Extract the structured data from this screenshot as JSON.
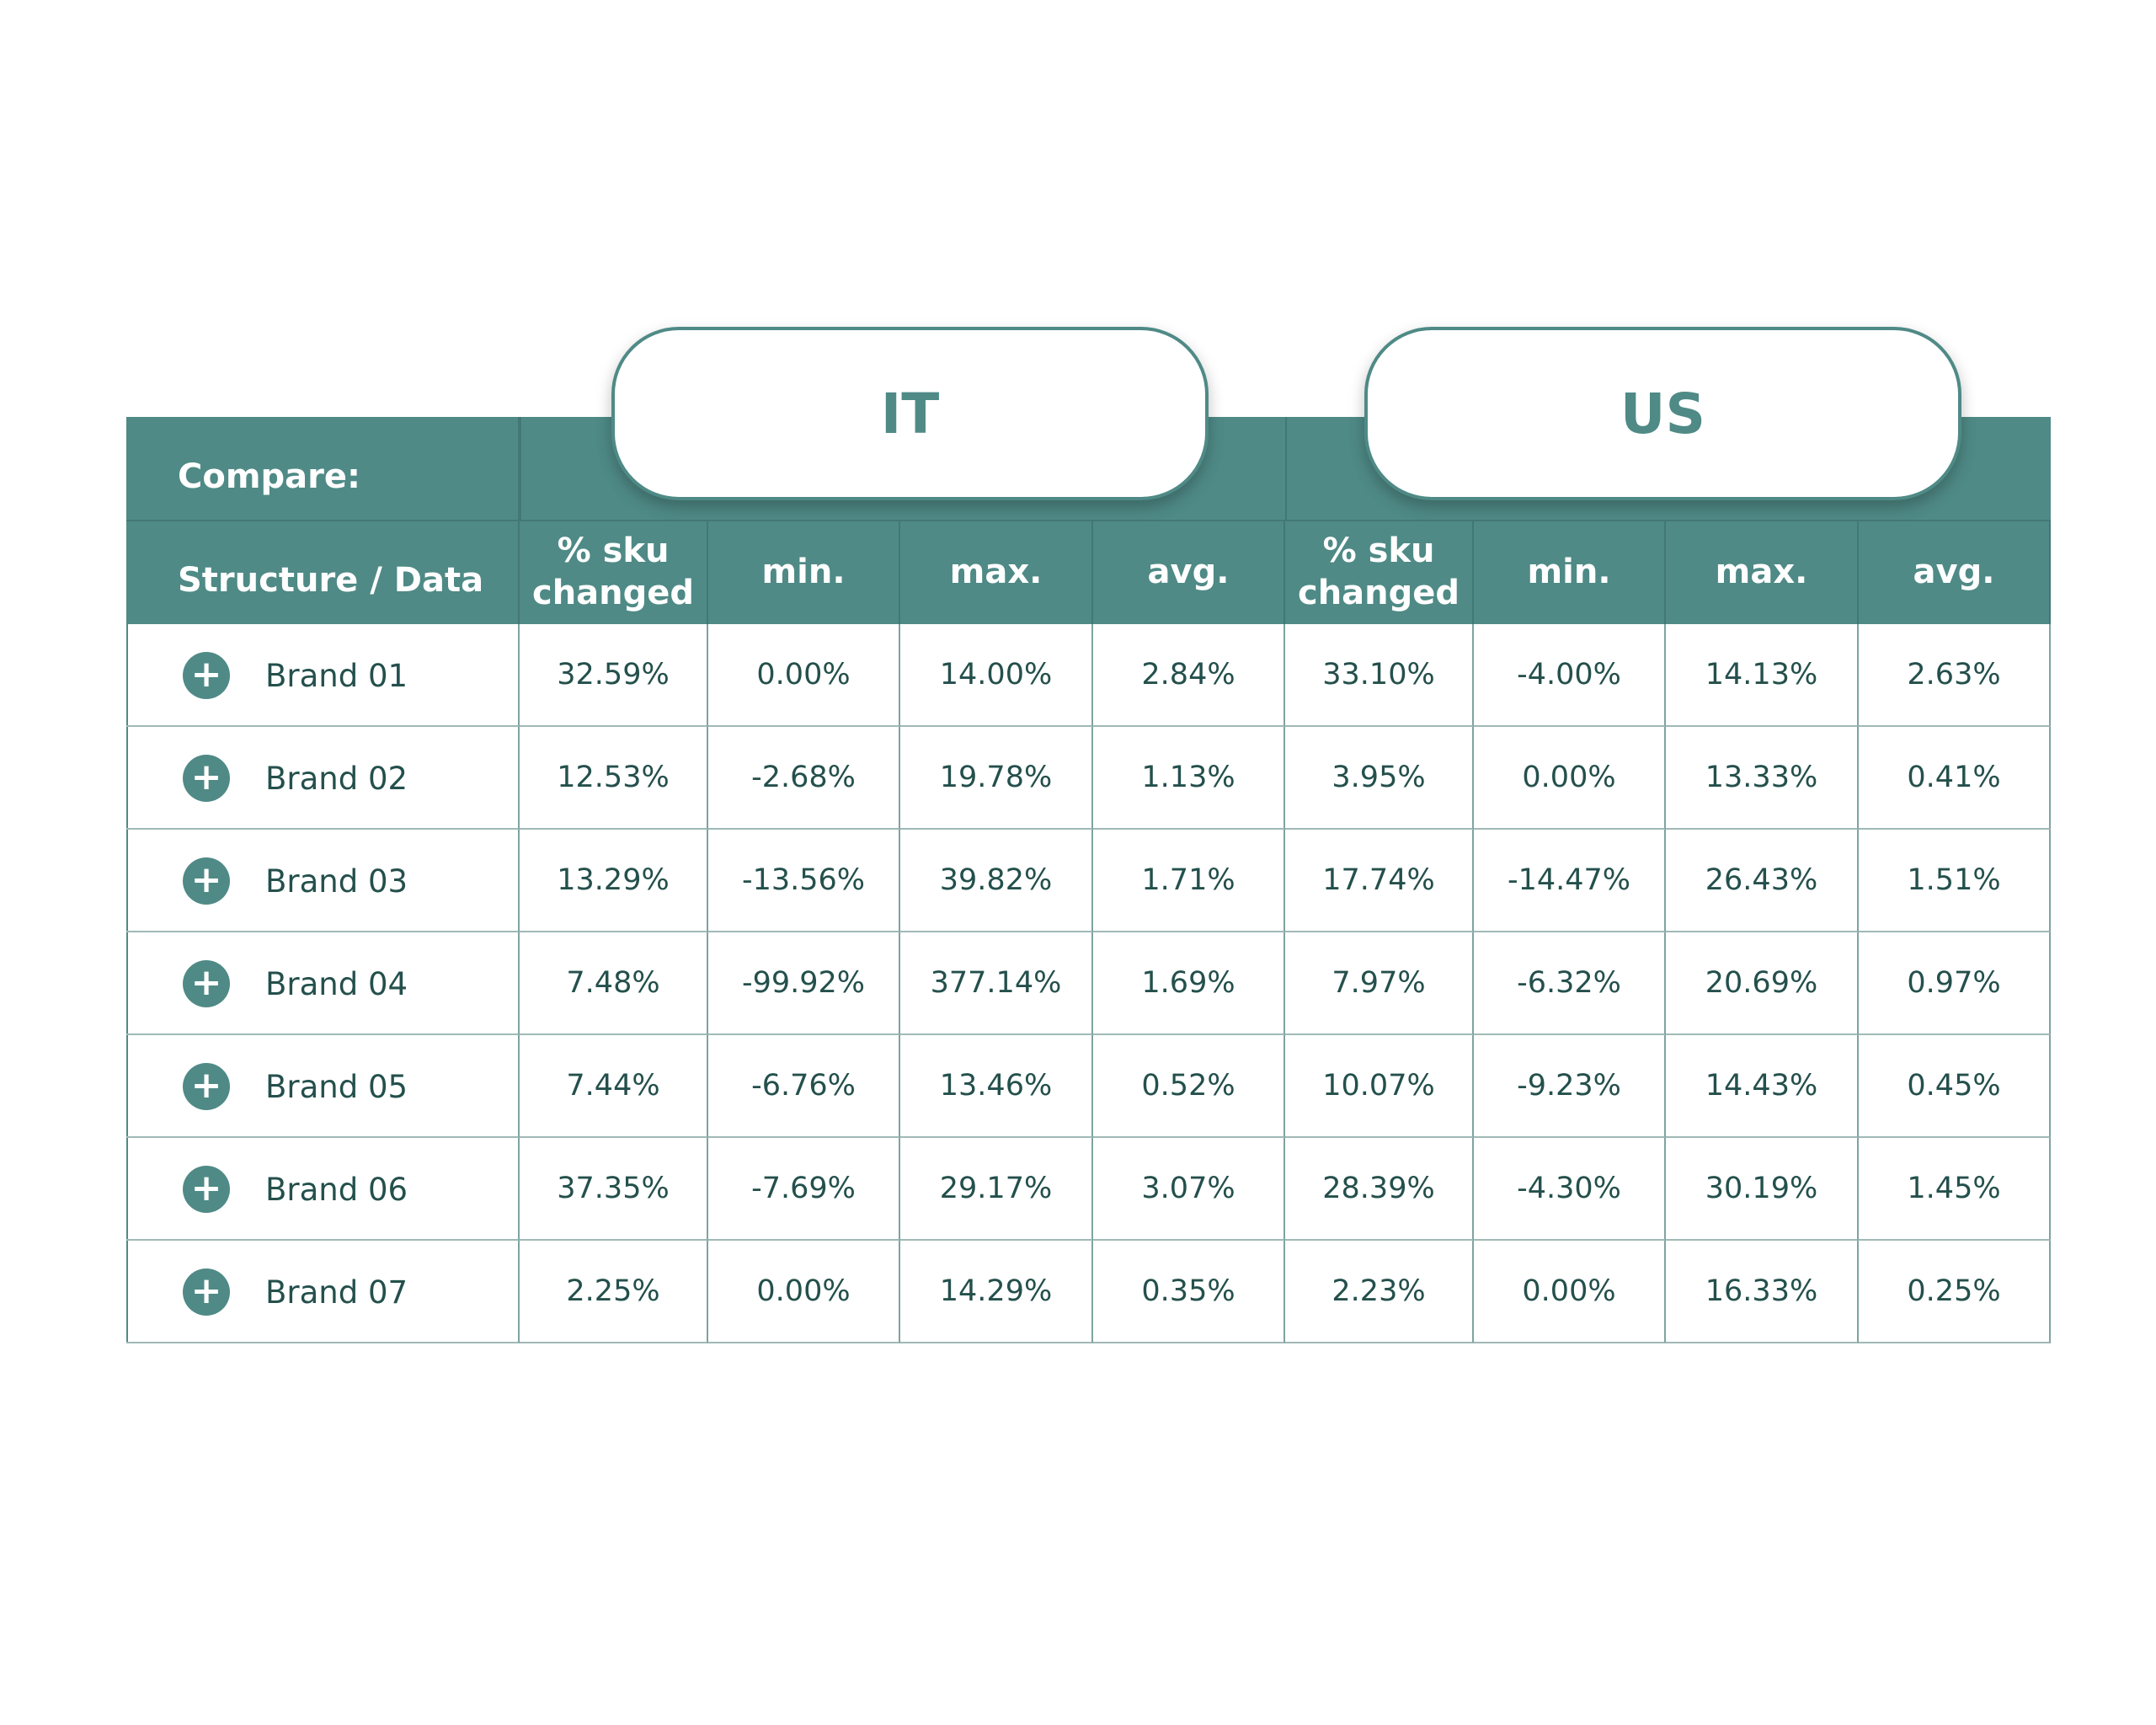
{
  "header": {
    "compare_label": "Compare:",
    "structure_label": "Structure / Data",
    "groups": [
      {
        "name": "IT",
        "columns": [
          "% sku changed",
          "min.",
          "max.",
          "avg."
        ]
      },
      {
        "name": "US",
        "columns": [
          "% sku changed",
          "min.",
          "max.",
          "avg."
        ]
      }
    ]
  },
  "table": {
    "rows": [
      {
        "label": "Brand 01",
        "cells": [
          "32.59%",
          "0.00%",
          "14.00%",
          "2.84%",
          "33.10%",
          "-4.00%",
          "14.13%",
          "2.63%"
        ]
      },
      {
        "label": "Brand 02",
        "cells": [
          "12.53%",
          "-2.68%",
          "19.78%",
          "1.13%",
          "3.95%",
          "0.00%",
          "13.33%",
          "0.41%"
        ]
      },
      {
        "label": "Brand 03",
        "cells": [
          "13.29%",
          "-13.56%",
          "39.82%",
          "1.71%",
          "17.74%",
          "-14.47%",
          "26.43%",
          "1.51%"
        ]
      },
      {
        "label": "Brand 04",
        "cells": [
          "7.48%",
          "-99.92%",
          "377.14%",
          "1.69%",
          "7.97%",
          "-6.32%",
          "20.69%",
          "0.97%"
        ]
      },
      {
        "label": "Brand 05",
        "cells": [
          "7.44%",
          "-6.76%",
          "13.46%",
          "0.52%",
          "10.07%",
          "-9.23%",
          "14.43%",
          "0.45%"
        ]
      },
      {
        "label": "Brand 06",
        "cells": [
          "37.35%",
          "-7.69%",
          "29.17%",
          "3.07%",
          "28.39%",
          "-4.30%",
          "30.19%",
          "1.45%"
        ]
      },
      {
        "label": "Brand 07",
        "cells": [
          "2.25%",
          "0.00%",
          "14.29%",
          "0.35%",
          "2.23%",
          "0.00%",
          "16.33%",
          "0.25%"
        ]
      }
    ]
  }
}
